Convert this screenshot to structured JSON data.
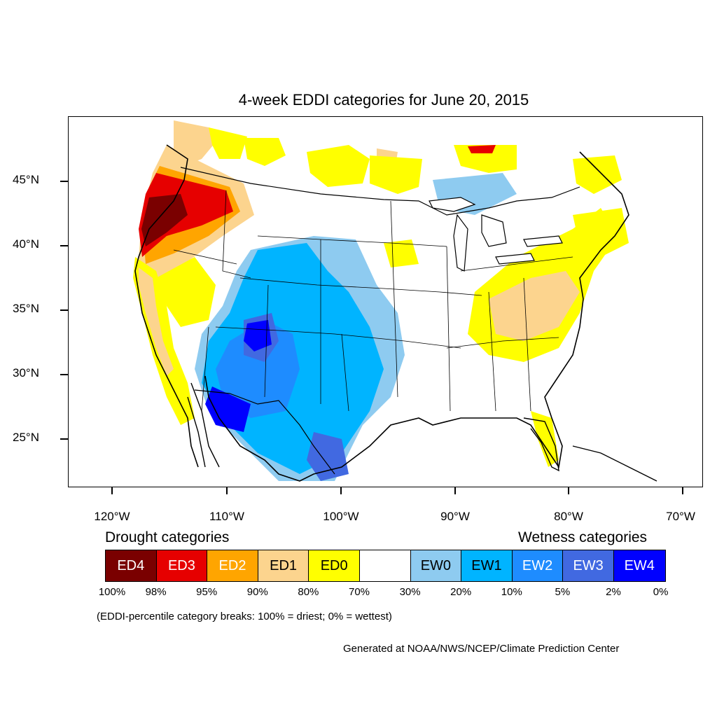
{
  "title": "4-week EDDI categories for June 20, 2015",
  "lat_labels": [
    "45°N",
    "40°N",
    "35°N",
    "30°N",
    "25°N"
  ],
  "lon_labels": [
    "120°W",
    "110°W",
    "100°W",
    "90°W",
    "80°W",
    "70°W"
  ],
  "legend": {
    "drought_heading": "Drought categories",
    "wetness_heading": "Wetness categories",
    "categories": [
      {
        "label": "ED4",
        "color": "#7a0000",
        "text_color": "#ffffff"
      },
      {
        "label": "ED3",
        "color": "#e60000",
        "text_color": "#ffffff"
      },
      {
        "label": "ED2",
        "color": "#ffa500",
        "text_color": "#ffffff"
      },
      {
        "label": "ED1",
        "color": "#fcd48e",
        "text_color": "#000000"
      },
      {
        "label": "ED0",
        "color": "#ffff00",
        "text_color": "#000000"
      },
      {
        "label": "",
        "color": "#ffffff",
        "text_color": "#000000"
      },
      {
        "label": "EW0",
        "color": "#8ecbf0",
        "text_color": "#000000"
      },
      {
        "label": "EW1",
        "color": "#00b4ff",
        "text_color": "#000000"
      },
      {
        "label": "EW2",
        "color": "#1e8cff",
        "text_color": "#ffffff"
      },
      {
        "label": "EW3",
        "color": "#4169e1",
        "text_color": "#ffffff"
      },
      {
        "label": "EW4",
        "color": "#0000ff",
        "text_color": "#ffffff"
      }
    ],
    "percentiles": [
      "100%",
      "98%",
      "95%",
      "90%",
      "80%",
      "70%",
      "30%",
      "20%",
      "10%",
      "5%",
      "2%",
      "0%"
    ]
  },
  "note": "(EDDI-percentile category breaks: 100% = driest; 0% = wettest)",
  "credit": "Generated at NOAA/NWS/NCEP/Climate Prediction Center"
}
